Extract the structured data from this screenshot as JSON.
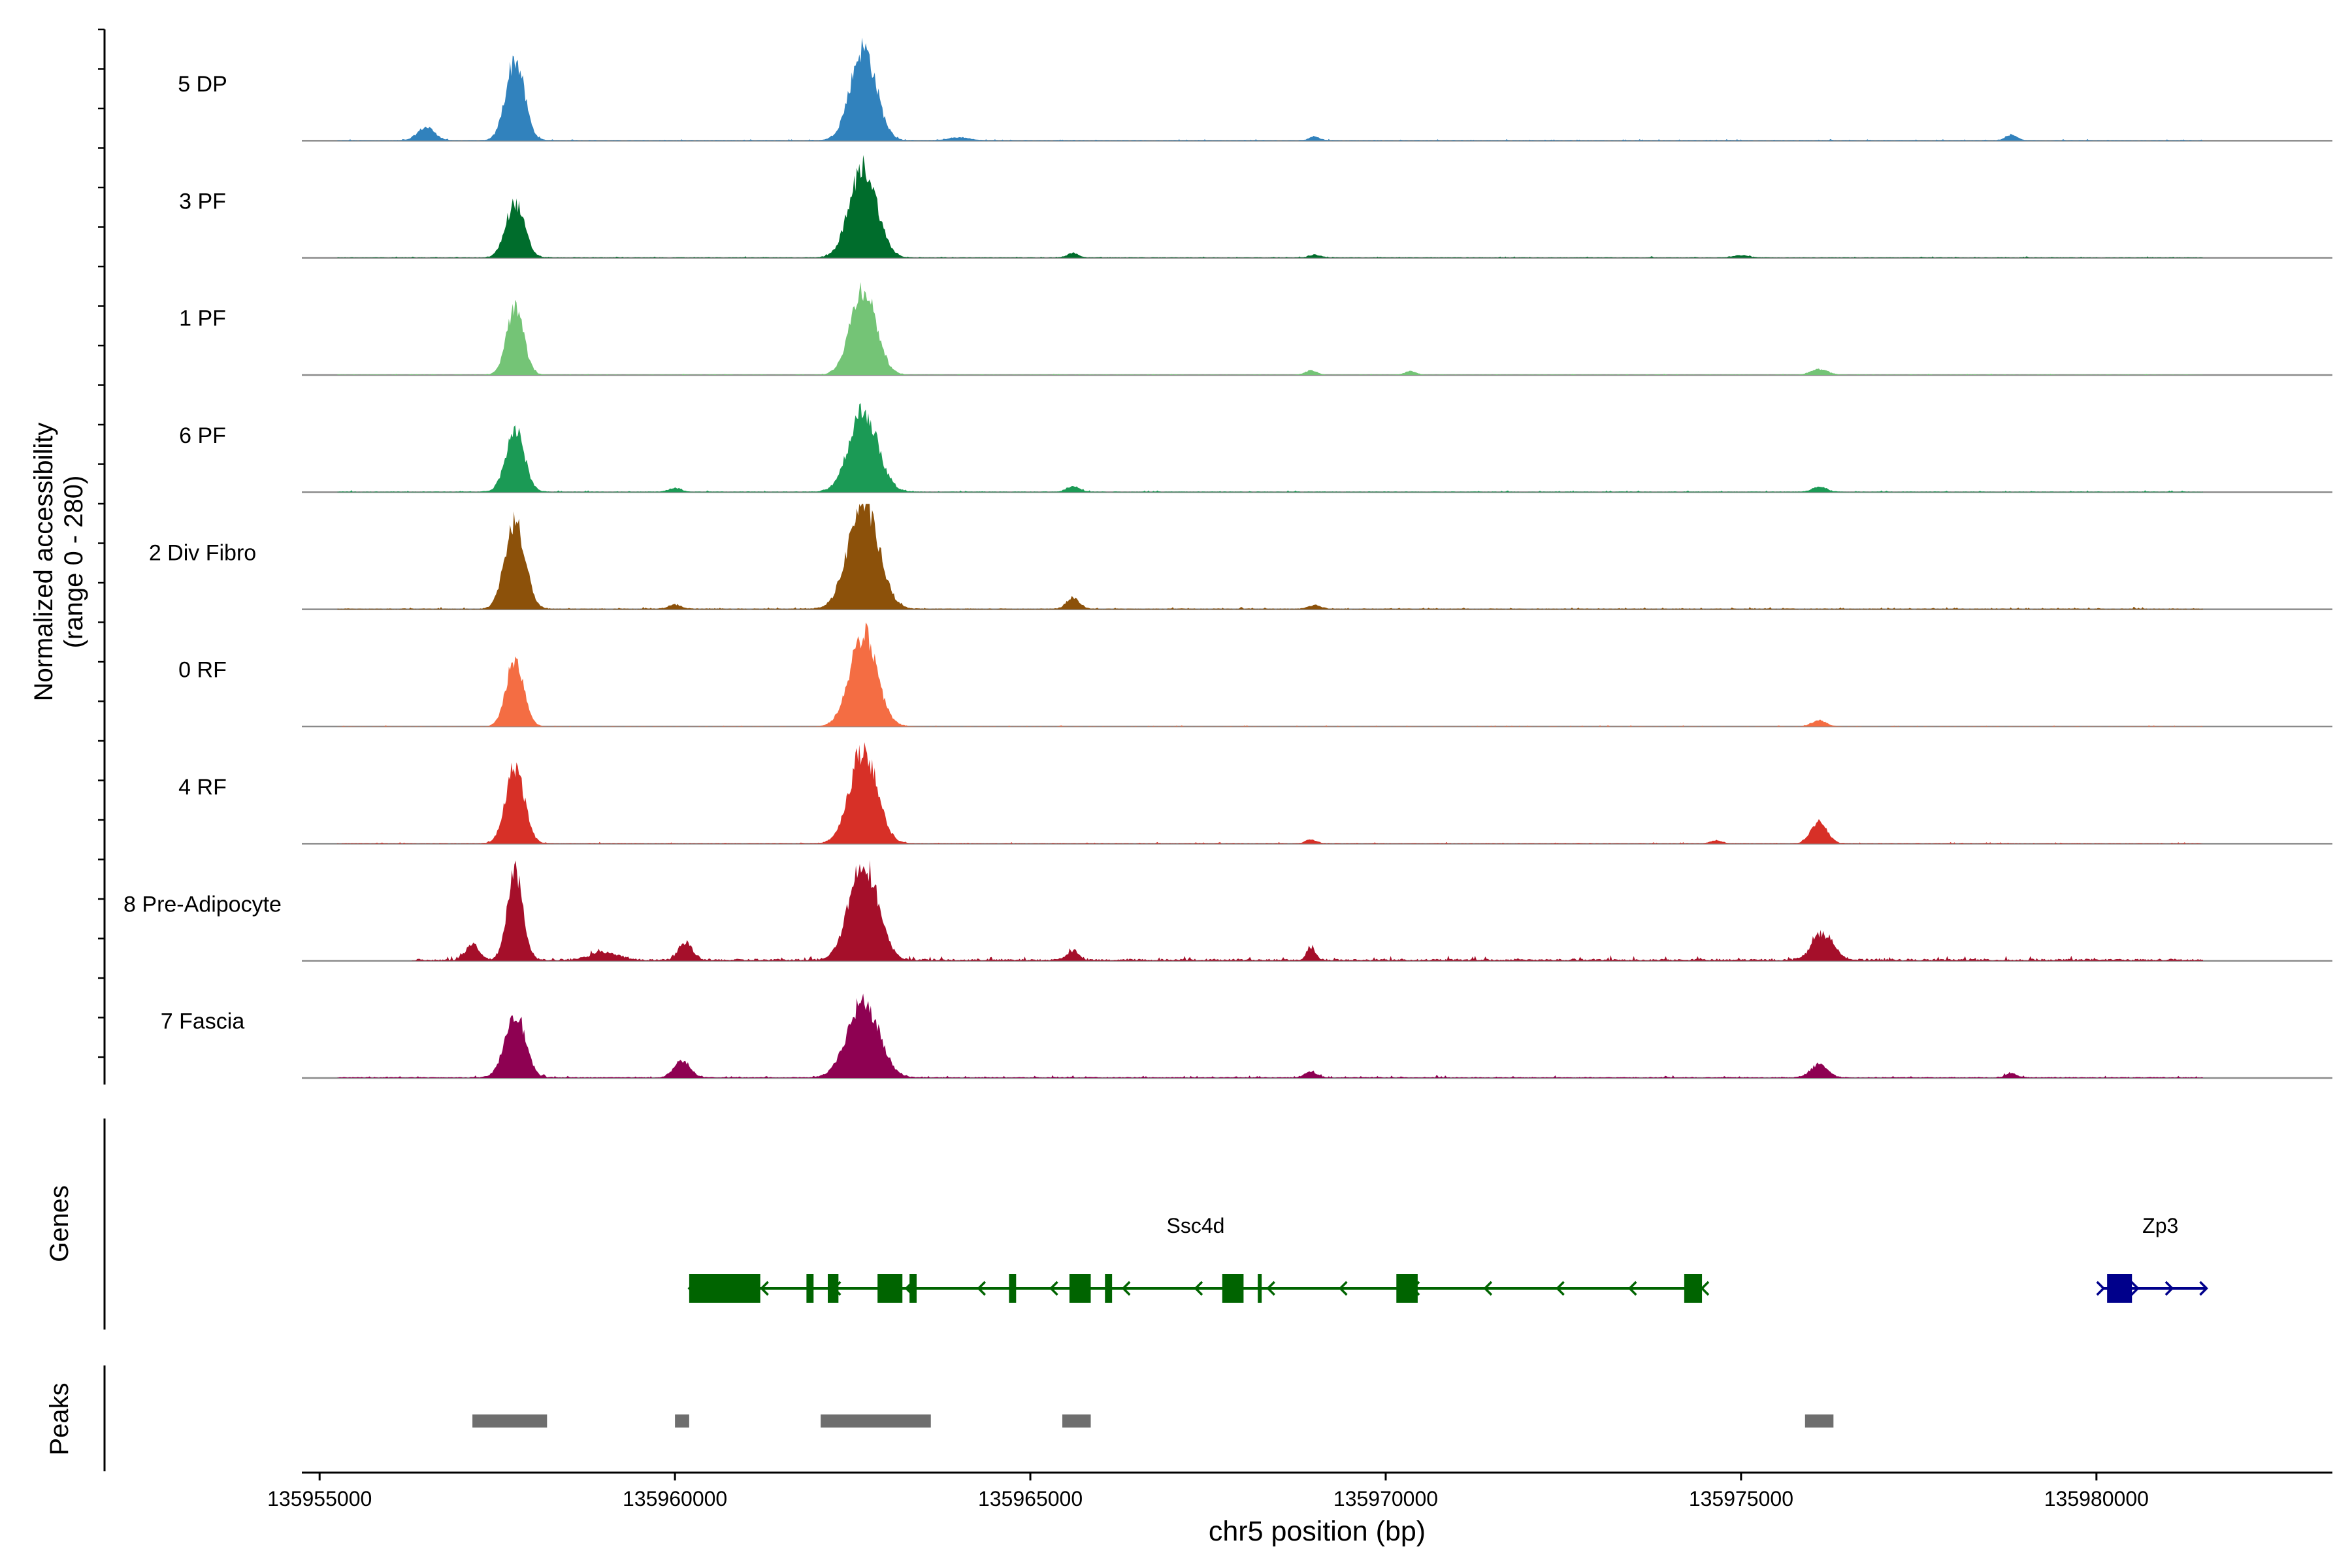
{
  "chart_data": {
    "type": "area",
    "y_axis_label_line1": "Normalized accessibility",
    "y_axis_label_line2": "(range 0 - 280)",
    "y_range": [
      0,
      280
    ],
    "xlabel": "chr5 position (bp)",
    "xlim": [
      135954750,
      135983320
    ],
    "x_ticks": [
      135955000,
      135960000,
      135965000,
      135970000,
      135975000,
      135980000
    ],
    "x_tick_labels": [
      "135955000",
      "135960000",
      "135965000",
      "135970000",
      "135975000",
      "135980000"
    ],
    "tracks": [
      {
        "name": "5 DP",
        "color": "#3182bd",
        "peaks": [
          [
            135957750,
            215,
            130
          ],
          [
            135962650,
            245,
            180
          ],
          [
            135956500,
            35,
            120
          ],
          [
            135978800,
            15,
            80
          ],
          [
            135969000,
            10,
            80
          ],
          [
            135964000,
            8,
            150
          ]
        ],
        "noise": 4,
        "extent": [
          135955250,
          135981500
        ]
      },
      {
        "name": "3 PF",
        "color": "#006d2c",
        "peaks": [
          [
            135957750,
            145,
            130
          ],
          [
            135962650,
            240,
            190
          ],
          [
            135965600,
            12,
            80
          ],
          [
            135969000,
            8,
            80
          ],
          [
            135975000,
            6,
            120
          ]
        ],
        "noise": 4,
        "extent": [
          135955250,
          135981500
        ]
      },
      {
        "name": "1 PF",
        "color": "#74c476",
        "peaks": [
          [
            135957750,
            175,
            120
          ],
          [
            135962650,
            230,
            180
          ],
          [
            135976100,
            15,
            120
          ],
          [
            135968950,
            12,
            80
          ],
          [
            135970350,
            10,
            80
          ]
        ],
        "noise": 3,
        "extent": [
          135955250,
          135981500
        ]
      },
      {
        "name": "6 PF",
        "color": "#1b9a55",
        "peaks": [
          [
            135957750,
            165,
            130
          ],
          [
            135962650,
            215,
            200
          ],
          [
            135965600,
            15,
            90
          ],
          [
            135976100,
            14,
            100
          ],
          [
            135960000,
            10,
            90
          ]
        ],
        "noise": 5,
        "extent": [
          135955250,
          135981500
        ]
      },
      {
        "name": "2 Div Fibro",
        "color": "#8c510a",
        "peaks": [
          [
            135957750,
            235,
            140
          ],
          [
            135962650,
            285,
            210
          ],
          [
            135965600,
            30,
            90
          ],
          [
            135960000,
            12,
            90
          ],
          [
            135969000,
            10,
            90
          ]
        ],
        "noise": 6,
        "extent": [
          135955250,
          135981500
        ]
      },
      {
        "name": "0 RF",
        "color": "#f46d43",
        "peaks": [
          [
            135957750,
            180,
            120
          ],
          [
            135962650,
            245,
            190
          ],
          [
            135976100,
            15,
            100
          ]
        ],
        "noise": 3,
        "extent": [
          135955250,
          135981500
        ]
      },
      {
        "name": "4 RF",
        "color": "#d73027",
        "peaks": [
          [
            135957750,
            205,
            130
          ],
          [
            135962650,
            250,
            190
          ],
          [
            135976100,
            60,
            110
          ],
          [
            135968950,
            10,
            80
          ],
          [
            135974650,
            8,
            80
          ]
        ],
        "noise": 4,
        "extent": [
          135955250,
          135981500
        ]
      },
      {
        "name": "8 Pre-Adipocyte",
        "color": "#a50f2a",
        "peaks": [
          [
            135957750,
            230,
            110
          ],
          [
            135962650,
            260,
            200
          ],
          [
            135957150,
            45,
            90
          ],
          [
            135960150,
            45,
            100
          ],
          [
            135976150,
            70,
            150
          ],
          [
            135968950,
            35,
            60
          ],
          [
            135965600,
            25,
            80
          ],
          [
            135959000,
            20,
            200
          ]
        ],
        "noise": 14,
        "extent": [
          135956300,
          135981500
        ]
      },
      {
        "name": "7 Fascia",
        "color": "#8e0152",
        "peaks": [
          [
            135957750,
            175,
            140
          ],
          [
            135962650,
            200,
            220
          ],
          [
            135960100,
            45,
            110
          ],
          [
            135976100,
            35,
            120
          ],
          [
            135968950,
            15,
            90
          ],
          [
            135978800,
            12,
            80
          ]
        ],
        "noise": 7,
        "extent": [
          135955250,
          135981500
        ]
      }
    ],
    "genes": {
      "label": "Genes",
      "items": [
        {
          "name": "Ssc4d",
          "color": "#006400",
          "strand": "-",
          "start": 135960200,
          "end": 135974450,
          "exons": [
            [
              135960200,
              135961200
            ],
            [
              135961850,
              135961950
            ],
            [
              135962150,
              135962300
            ],
            [
              135962850,
              135963200
            ],
            [
              135963300,
              135963400
            ],
            [
              135964700,
              135964800
            ],
            [
              135965550,
              135965850
            ],
            [
              135966050,
              135966150
            ],
            [
              135967700,
              135968000
            ],
            [
              135968200,
              135968250
            ],
            [
              135970150,
              135970450
            ],
            [
              135974200,
              135974450
            ]
          ]
        },
        {
          "name": "Zp3",
          "color": "#00008b",
          "strand": "+",
          "start": 135980100,
          "end": 135981550,
          "exons": [
            [
              135980150,
              135980500
            ]
          ]
        }
      ]
    },
    "peaks_track": {
      "label": "Peaks",
      "color": "#6e6e6e",
      "regions": [
        [
          135957150,
          135958200
        ],
        [
          135960000,
          135960200
        ],
        [
          135962050,
          135963600
        ],
        [
          135965450,
          135965850
        ],
        [
          135975900,
          135976300
        ]
      ]
    }
  }
}
